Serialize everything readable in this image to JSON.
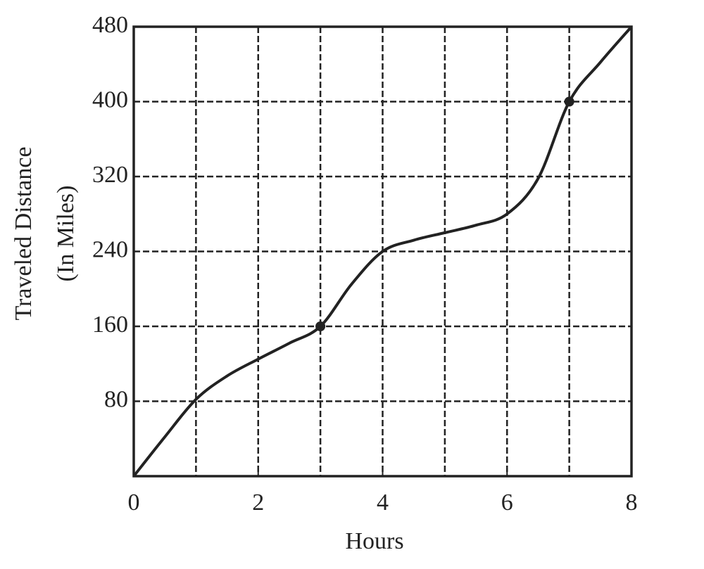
{
  "chart_data": {
    "type": "line",
    "xlabel": "Hours",
    "ylabel": [
      "Traveled Distance",
      "(In Miles)"
    ],
    "x": [
      0,
      0.5,
      1,
      1.5,
      2,
      2.5,
      3,
      3.5,
      4,
      4.5,
      5,
      5.5,
      6,
      6.5,
      7,
      7.5,
      8
    ],
    "values": [
      0,
      42,
      82,
      107,
      125,
      142,
      160,
      205,
      240,
      252,
      260,
      268,
      280,
      318,
      400,
      442,
      480
    ],
    "markers": {
      "x": [
        3,
        7
      ],
      "values": [
        160,
        400
      ]
    },
    "color": "#222222",
    "xlim": [
      0,
      8
    ],
    "xticks": [
      0,
      2,
      4,
      6,
      8
    ],
    "ylim": [
      0,
      480
    ],
    "yticks": [
      80,
      160,
      240,
      320,
      400,
      480
    ],
    "grid": true,
    "xgrid": [
      1,
      2,
      3,
      4,
      5,
      6,
      7
    ],
    "ygrid": [
      80,
      160,
      240,
      320,
      400
    ]
  }
}
